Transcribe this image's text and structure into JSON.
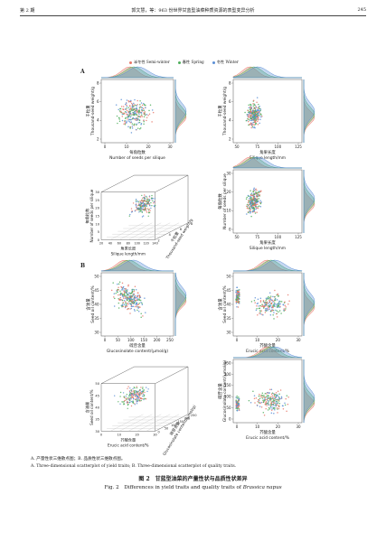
{
  "header": {
    "page_left": "第 2 期",
    "running_title": "郭文慧，等：963 份世界甘蓝型油菜种质资源的表型变异分析",
    "page_right": "245"
  },
  "legend": {
    "items": [
      {
        "label": "半冬性 Semi-winter",
        "color": "#e8786a"
      },
      {
        "label": "春性 Spring",
        "color": "#4fae5c"
      },
      {
        "label": "冬性 Winter",
        "color": "#5b8fd6"
      }
    ]
  },
  "panel_labels": {
    "a": "A",
    "b": "B"
  },
  "plots": {
    "p1": {
      "ylabel_zh": "千粒重",
      "ylabel_en": "Thousand-seed weight/g",
      "xlabel_zh": "每角粒数",
      "xlabel_en": "Number of seeds per silique",
      "xticks": [
        "0",
        "10",
        "20",
        "30"
      ],
      "yticks": [
        "2",
        "4",
        "6",
        "8"
      ]
    },
    "p2": {
      "ylabel_zh": "千粒重",
      "ylabel_en": "Thousand-seed weight/g",
      "xlabel_zh": "角果长度",
      "xlabel_en": "Silique length/mm",
      "xticks": [
        "50",
        "75",
        "100",
        "125"
      ],
      "yticks": [
        "2",
        "4",
        "6",
        "8"
      ]
    },
    "p3": {
      "zlabel_zh": "每角粒数",
      "zlabel_en": "Number of seeds per silique",
      "xlabel_zh": "角果长度",
      "xlabel_en": "Silique length/mm",
      "ylabel_zh": "千粒重",
      "ylabel_en": "Thousand-seed weight/g",
      "xticks": [
        "20",
        "40",
        "60",
        "80",
        "100",
        "120",
        "140"
      ],
      "zticks": [
        "0",
        "5",
        "10",
        "15",
        "20",
        "25",
        "30"
      ],
      "yticks": [
        "2",
        "4",
        "6",
        "8"
      ]
    },
    "p4": {
      "ylabel_zh": "每角粒数",
      "ylabel_en": "Number of seeds per silique",
      "xlabel_zh": "角果长度",
      "xlabel_en": "Silique length/mm",
      "xticks": [
        "50",
        "75",
        "100",
        "125"
      ],
      "yticks": [
        "0",
        "10",
        "20",
        "30"
      ]
    },
    "p5": {
      "ylabel_zh": "含油量",
      "ylabel_en": "Seed oil content/%",
      "xlabel_zh": "硫苷含量",
      "xlabel_en": "Glucosinolate content/(μmol/g)",
      "xticks": [
        "0",
        "50",
        "100",
        "150",
        "200",
        "250"
      ],
      "yticks": [
        "30",
        "35",
        "40",
        "45",
        "50"
      ]
    },
    "p6": {
      "ylabel_zh": "含油量",
      "ylabel_en": "Seed oil content/%",
      "xlabel_zh": "芥酸含量",
      "xlabel_en": "Erucic acid content/%",
      "xticks": [
        "0",
        "10",
        "20",
        "30"
      ],
      "yticks": [
        "30",
        "35",
        "40",
        "45",
        "50"
      ]
    },
    "p7": {
      "zlabel_zh": "含油量",
      "zlabel_en": "Seed oil content/%",
      "xlabel_zh": "芥酸含量",
      "xlabel_en": "Erucic acid content/%",
      "ylabel_zh": "硫苷含量",
      "ylabel_en": "Glucosinolate content/(μmol/g)",
      "xticks": [
        "0",
        "10",
        "20",
        "30"
      ],
      "zticks": [
        "30",
        "35",
        "40",
        "45",
        "50"
      ],
      "yticks": [
        "0",
        "50",
        "100",
        "150",
        "200",
        "250"
      ]
    },
    "p8": {
      "ylabel_zh": "硫苷含量",
      "ylabel_en": "Glucosinolate content/(μmol/g)",
      "xlabel_zh": "芥酸含量",
      "xlabel_en": "Erucic acid content/%",
      "xticks": [
        "0",
        "10",
        "20",
        "30"
      ],
      "yticks": [
        "0",
        "50",
        "100",
        "150",
        "200",
        "250"
      ]
    }
  },
  "notes": {
    "zh": "A. 产量性状三维散点图；B. 品质性状三维散点图。",
    "en": "A. Three-dimensional scatterplot of yield traits; B. Three-dimensional scatterplot of quality traits."
  },
  "caption": {
    "zh": "图 2　甘蓝型油菜的产量性状与品质性状差异",
    "en_prefix": "Fig. 2　Differences in yield traits and quality traits of ",
    "en_species": "Brassica napus"
  }
}
